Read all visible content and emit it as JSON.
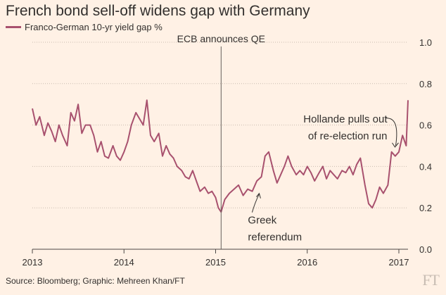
{
  "colors": {
    "background": "#fff1e5",
    "series": "#a8516e",
    "grid": "#c9bcb0",
    "text": "#33302e",
    "event_line": "#66605c",
    "logo": "#c8bdb3"
  },
  "footer": {
    "source": "Source: Bloomberg; Graphic: Mehreen Khan/FT",
    "logo": "FT"
  },
  "chart_data": {
    "type": "line",
    "title": "French bond sell-off widens gap with Germany",
    "legend_position": "top-left",
    "grid": true,
    "y_axis_side": "right",
    "ylim": [
      0,
      1.0
    ],
    "yticks": [
      0,
      0.2,
      0.4,
      0.6,
      0.8,
      1.0
    ],
    "ytick_labels": [
      "0.0",
      "0.2",
      "0.4",
      "0.6",
      "0.8",
      "1.0"
    ],
    "xlim": [
      2013,
      2017.2
    ],
    "xticks": [
      2013,
      2014,
      2015,
      2016,
      2017
    ],
    "xtick_labels": [
      "2013",
      "2014",
      "2015",
      "2016",
      "2017"
    ],
    "series": [
      {
        "name": "Franco-German 10-yr yield gap %",
        "x": [
          2013.0,
          2013.04,
          2013.08,
          2013.13,
          2013.17,
          2013.21,
          2013.25,
          2013.29,
          2013.33,
          2013.38,
          2013.42,
          2013.46,
          2013.5,
          2013.54,
          2013.58,
          2013.63,
          2013.67,
          2013.71,
          2013.75,
          2013.79,
          2013.83,
          2013.88,
          2013.92,
          2013.96,
          2014.0,
          2014.04,
          2014.08,
          2014.13,
          2014.17,
          2014.21,
          2014.25,
          2014.29,
          2014.33,
          2014.38,
          2014.42,
          2014.46,
          2014.5,
          2014.54,
          2014.58,
          2014.63,
          2014.67,
          2014.71,
          2014.75,
          2014.79,
          2014.83,
          2014.88,
          2014.92,
          2014.96,
          2015.0,
          2015.03,
          2015.06,
          2015.1,
          2015.15,
          2015.2,
          2015.25,
          2015.3,
          2015.35,
          2015.4,
          2015.45,
          2015.5,
          2015.54,
          2015.58,
          2015.63,
          2015.67,
          2015.71,
          2015.75,
          2015.79,
          2015.83,
          2015.88,
          2015.92,
          2015.96,
          2016.0,
          2016.04,
          2016.08,
          2016.13,
          2016.17,
          2016.21,
          2016.25,
          2016.29,
          2016.33,
          2016.38,
          2016.42,
          2016.46,
          2016.5,
          2016.54,
          2016.58,
          2016.63,
          2016.67,
          2016.71,
          2016.75,
          2016.79,
          2016.83,
          2016.88,
          2016.92,
          2016.96,
          2017.0,
          2017.04,
          2017.08,
          2017.1
        ],
        "values": [
          0.68,
          0.6,
          0.64,
          0.55,
          0.61,
          0.57,
          0.52,
          0.6,
          0.55,
          0.5,
          0.66,
          0.62,
          0.7,
          0.56,
          0.6,
          0.6,
          0.55,
          0.47,
          0.52,
          0.45,
          0.44,
          0.5,
          0.45,
          0.43,
          0.47,
          0.52,
          0.6,
          0.66,
          0.63,
          0.6,
          0.72,
          0.55,
          0.52,
          0.56,
          0.45,
          0.5,
          0.46,
          0.44,
          0.4,
          0.38,
          0.35,
          0.34,
          0.38,
          0.33,
          0.28,
          0.3,
          0.27,
          0.28,
          0.25,
          0.2,
          0.18,
          0.24,
          0.27,
          0.29,
          0.31,
          0.26,
          0.29,
          0.28,
          0.33,
          0.35,
          0.45,
          0.47,
          0.38,
          0.32,
          0.36,
          0.4,
          0.45,
          0.4,
          0.36,
          0.38,
          0.36,
          0.4,
          0.37,
          0.33,
          0.37,
          0.4,
          0.34,
          0.38,
          0.36,
          0.34,
          0.38,
          0.37,
          0.4,
          0.36,
          0.41,
          0.44,
          0.31,
          0.22,
          0.2,
          0.24,
          0.3,
          0.27,
          0.31,
          0.47,
          0.45,
          0.47,
          0.55,
          0.5,
          0.72
        ]
      }
    ],
    "annotations": [
      {
        "x": 2015.06,
        "text": "ECB announces QE",
        "type": "vertical-line"
      },
      {
        "x": 2015.46,
        "y": 0.28,
        "text": "Greek referendum",
        "lines": [
          "Greek",
          "referendum"
        ]
      },
      {
        "x": 2016.95,
        "y": 0.48,
        "text": "Hollande pulls out of re-election run",
        "lines": [
          "Hollande pulls out",
          "of re-election run"
        ]
      }
    ]
  }
}
